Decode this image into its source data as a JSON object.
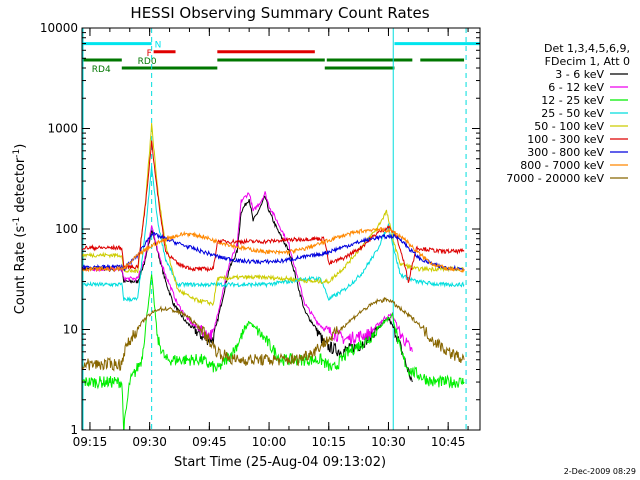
{
  "chart_data": {
    "type": "line",
    "title": "HESSI Observing Summary Count Rates",
    "xlabel": "Start Time (25-Aug-04 09:13:02)",
    "ylabel_main": "Count Rate (s",
    "ylabel_sup1": "-1",
    "ylabel_mid": " detector",
    "ylabel_sup2": "-1",
    "ylabel_end": ")",
    "xlim_minutes": [
      0,
      100
    ],
    "ylim": [
      1,
      10000
    ],
    "yscale": "log",
    "xticks": [
      {
        "t": 2,
        "label": "09:15"
      },
      {
        "t": 17,
        "label": "09:30"
      },
      {
        "t": 32,
        "label": "09:45"
      },
      {
        "t": 47,
        "label": "10:00"
      },
      {
        "t": 62,
        "label": "10:15"
      },
      {
        "t": 77,
        "label": "10:30"
      },
      {
        "t": 92,
        "label": "10:45"
      }
    ],
    "yticks": [
      {
        "v": 1,
        "label": "1"
      },
      {
        "v": 10,
        "label": "10"
      },
      {
        "v": 100,
        "label": "100"
      },
      {
        "v": 1000,
        "label": "1000"
      },
      {
        "v": 10000,
        "label": "10000"
      }
    ],
    "legend": {
      "header": [
        "Det 1,3,4,5,6,9,",
        "FDecim 1, Att 0"
      ],
      "placement": "right"
    },
    "flag_bars": [
      {
        "label": "N",
        "color": "#00e5ee",
        "level": 7000,
        "segments": [
          [
            0,
            17.5
          ],
          [
            78.5,
            100
          ]
        ]
      },
      {
        "label": "F",
        "color": "#e00000",
        "level": 5800,
        "segments": [
          [
            18,
            23.5
          ],
          [
            34,
            58.5
          ]
        ]
      },
      {
        "label": "RD0",
        "color": "#007700",
        "level": 4800,
        "segments": [
          [
            0,
            10
          ],
          [
            34,
            61
          ],
          [
            61.5,
            83
          ],
          [
            85,
            96
          ]
        ]
      },
      {
        "label": "RD4",
        "color": "#007700",
        "level": 4000,
        "segments": [
          [
            10,
            34
          ],
          [
            61,
            78.5
          ]
        ]
      }
    ],
    "vlines_dashed": [
      17.5,
      96.5
    ],
    "vlines_solid": [
      78.2
    ],
    "series": [
      {
        "name": "3 - 6 keV",
        "color": "#000000",
        "points": [
          [
            0,
            40
          ],
          [
            10,
            40
          ],
          [
            10.5,
            30
          ],
          [
            14,
            30
          ],
          [
            16,
            50
          ],
          [
            17.5,
            100
          ],
          [
            19,
            60
          ],
          [
            21,
            30
          ],
          [
            23,
            18
          ],
          [
            26,
            12
          ],
          [
            31,
            8
          ],
          [
            33,
            8
          ],
          [
            34,
            12
          ],
          [
            37,
            40
          ],
          [
            39,
            60
          ],
          [
            40,
            150
          ],
          [
            42,
            200
          ],
          [
            43,
            120
          ],
          [
            45,
            170
          ],
          [
            46,
            210
          ],
          [
            47,
            150
          ],
          [
            49,
            100
          ],
          [
            52,
            60
          ],
          [
            54,
            30
          ],
          [
            56,
            15
          ],
          [
            59,
            10
          ],
          [
            61,
            7
          ],
          [
            65,
            6
          ],
          [
            70,
            7
          ],
          [
            74,
            10
          ],
          [
            77,
            13
          ],
          [
            79,
            9
          ],
          [
            81,
            5
          ],
          [
            83,
            3
          ]
        ]
      },
      {
        "name": "6 - 12 keV",
        "color": "#ee00ee",
        "points": [
          [
            0,
            40
          ],
          [
            10,
            40
          ],
          [
            10.5,
            32
          ],
          [
            14,
            32
          ],
          [
            16,
            55
          ],
          [
            17.5,
            110
          ],
          [
            19,
            60
          ],
          [
            21,
            35
          ],
          [
            24,
            18
          ],
          [
            27,
            12
          ],
          [
            31,
            9
          ],
          [
            33,
            9
          ],
          [
            34,
            14
          ],
          [
            37,
            45
          ],
          [
            39,
            70
          ],
          [
            40,
            190
          ],
          [
            42,
            230
          ],
          [
            43,
            150
          ],
          [
            45,
            190
          ],
          [
            46,
            230
          ],
          [
            47,
            170
          ],
          [
            49,
            120
          ],
          [
            52,
            70
          ],
          [
            54,
            35
          ],
          [
            56,
            18
          ],
          [
            59,
            12
          ],
          [
            61,
            10
          ],
          [
            66,
            8
          ],
          [
            72,
            9
          ],
          [
            76,
            13
          ],
          [
            78,
            14
          ],
          [
            80,
            9
          ],
          [
            83,
            6
          ]
        ]
      },
      {
        "name": "12 - 25 keV",
        "color": "#00ee00",
        "points": [
          [
            0,
            3
          ],
          [
            10,
            3
          ],
          [
            10.5,
            1
          ],
          [
            12,
            3
          ],
          [
            15,
            5
          ],
          [
            17.5,
            35
          ],
          [
            19,
            8
          ],
          [
            21,
            5
          ],
          [
            25,
            5
          ],
          [
            30,
            5
          ],
          [
            34,
            4
          ],
          [
            38,
            6
          ],
          [
            42,
            12
          ],
          [
            46,
            8
          ],
          [
            50,
            5
          ],
          [
            55,
            5
          ],
          [
            60,
            5
          ],
          [
            63,
            4
          ],
          [
            67,
            6
          ],
          [
            72,
            8
          ],
          [
            76,
            12
          ],
          [
            78,
            14
          ],
          [
            80,
            6
          ],
          [
            82,
            4
          ],
          [
            88,
            3
          ],
          [
            96,
            3
          ]
        ]
      },
      {
        "name": "25 - 50 keV",
        "color": "#00dddd",
        "points": [
          [
            0,
            28
          ],
          [
            10,
            28
          ],
          [
            10.5,
            20
          ],
          [
            14,
            20
          ],
          [
            16,
            100
          ],
          [
            17.5,
            420
          ],
          [
            19,
            120
          ],
          [
            21,
            50
          ],
          [
            24,
            28
          ],
          [
            30,
            28
          ],
          [
            34,
            28
          ],
          [
            40,
            28
          ],
          [
            46,
            28
          ],
          [
            52,
            30
          ],
          [
            56,
            32
          ],
          [
            60,
            32
          ],
          [
            62,
            20
          ],
          [
            66,
            25
          ],
          [
            70,
            35
          ],
          [
            74,
            60
          ],
          [
            77,
            110
          ],
          [
            78.5,
            60
          ],
          [
            80,
            35
          ],
          [
            84,
            30
          ],
          [
            90,
            28
          ],
          [
            96,
            28
          ]
        ]
      },
      {
        "name": "50 - 100 keV",
        "color": "#cccc00",
        "points": [
          [
            0,
            55
          ],
          [
            10,
            55
          ],
          [
            10.5,
            38
          ],
          [
            14,
            38
          ],
          [
            16,
            200
          ],
          [
            17.5,
            1100
          ],
          [
            19,
            250
          ],
          [
            21,
            70
          ],
          [
            24,
            25
          ],
          [
            28,
            20
          ],
          [
            33,
            18
          ],
          [
            34,
            32
          ],
          [
            40,
            33
          ],
          [
            46,
            33
          ],
          [
            52,
            32
          ],
          [
            58,
            30
          ],
          [
            61,
            30
          ],
          [
            62,
            30
          ],
          [
            66,
            42
          ],
          [
            70,
            65
          ],
          [
            74,
            100
          ],
          [
            76.5,
            150
          ],
          [
            78.5,
            70
          ],
          [
            80,
            45
          ],
          [
            84,
            40
          ],
          [
            90,
            40
          ],
          [
            96,
            40
          ]
        ]
      },
      {
        "name": "100 - 300 keV",
        "color": "#dd0000",
        "points": [
          [
            0,
            65
          ],
          [
            10,
            65
          ],
          [
            10.5,
            42
          ],
          [
            14,
            42
          ],
          [
            16,
            180
          ],
          [
            17.5,
            750
          ],
          [
            19,
            220
          ],
          [
            21,
            60
          ],
          [
            24,
            45
          ],
          [
            28,
            40
          ],
          [
            33,
            40
          ],
          [
            34,
            75
          ],
          [
            40,
            75
          ],
          [
            46,
            75
          ],
          [
            52,
            78
          ],
          [
            58,
            80
          ],
          [
            61,
            80
          ],
          [
            62,
            45
          ],
          [
            66,
            52
          ],
          [
            70,
            65
          ],
          [
            74,
            90
          ],
          [
            77,
            105
          ],
          [
            79,
            85
          ],
          [
            81,
            45
          ],
          [
            82,
            30
          ],
          [
            84,
            65
          ],
          [
            90,
            60
          ],
          [
            96,
            60
          ]
        ]
      },
      {
        "name": "300 - 800 keV",
        "color": "#0000dd",
        "points": [
          [
            0,
            42
          ],
          [
            10,
            42
          ],
          [
            10.5,
            40
          ],
          [
            14,
            55
          ],
          [
            17.5,
            90
          ],
          [
            21,
            80
          ],
          [
            25,
            70
          ],
          [
            30,
            60
          ],
          [
            35,
            52
          ],
          [
            40,
            48
          ],
          [
            45,
            47
          ],
          [
            50,
            48
          ],
          [
            55,
            52
          ],
          [
            60,
            56
          ],
          [
            65,
            65
          ],
          [
            70,
            75
          ],
          [
            74,
            82
          ],
          [
            78,
            85
          ],
          [
            80,
            80
          ],
          [
            82,
            65
          ],
          [
            85,
            50
          ],
          [
            90,
            42
          ],
          [
            96,
            40
          ]
        ]
      },
      {
        "name": "800 - 7000 keV",
        "color": "#ff8800",
        "points": [
          [
            0,
            40
          ],
          [
            10,
            40
          ],
          [
            10.5,
            40
          ],
          [
            14,
            55
          ],
          [
            18,
            70
          ],
          [
            22,
            82
          ],
          [
            26,
            90
          ],
          [
            30,
            85
          ],
          [
            34,
            75
          ],
          [
            40,
            65
          ],
          [
            45,
            60
          ],
          [
            50,
            58
          ],
          [
            55,
            62
          ],
          [
            60,
            72
          ],
          [
            65,
            85
          ],
          [
            70,
            95
          ],
          [
            74,
            100
          ],
          [
            78,
            95
          ],
          [
            81,
            80
          ],
          [
            84,
            60
          ],
          [
            88,
            45
          ],
          [
            92,
            40
          ],
          [
            96,
            38
          ]
        ]
      },
      {
        "name": "7000 - 20000 keV",
        "color": "#886600",
        "points": [
          [
            0,
            4.5
          ],
          [
            10,
            4.5
          ],
          [
            10.5,
            6
          ],
          [
            13,
            9
          ],
          [
            16,
            13
          ],
          [
            19,
            16
          ],
          [
            22,
            16
          ],
          [
            26,
            14
          ],
          [
            30,
            10
          ],
          [
            34,
            6
          ],
          [
            38,
            5
          ],
          [
            42,
            5
          ],
          [
            46,
            5
          ],
          [
            50,
            5
          ],
          [
            54,
            5
          ],
          [
            58,
            6
          ],
          [
            62,
            8
          ],
          [
            66,
            11
          ],
          [
            70,
            15
          ],
          [
            74,
            19
          ],
          [
            77,
            20
          ],
          [
            80,
            16
          ],
          [
            84,
            12
          ],
          [
            88,
            8
          ],
          [
            92,
            6
          ],
          [
            96,
            5
          ]
        ]
      }
    ]
  },
  "footer": {
    "timestamp": "2-Dec-2009 08:29"
  }
}
